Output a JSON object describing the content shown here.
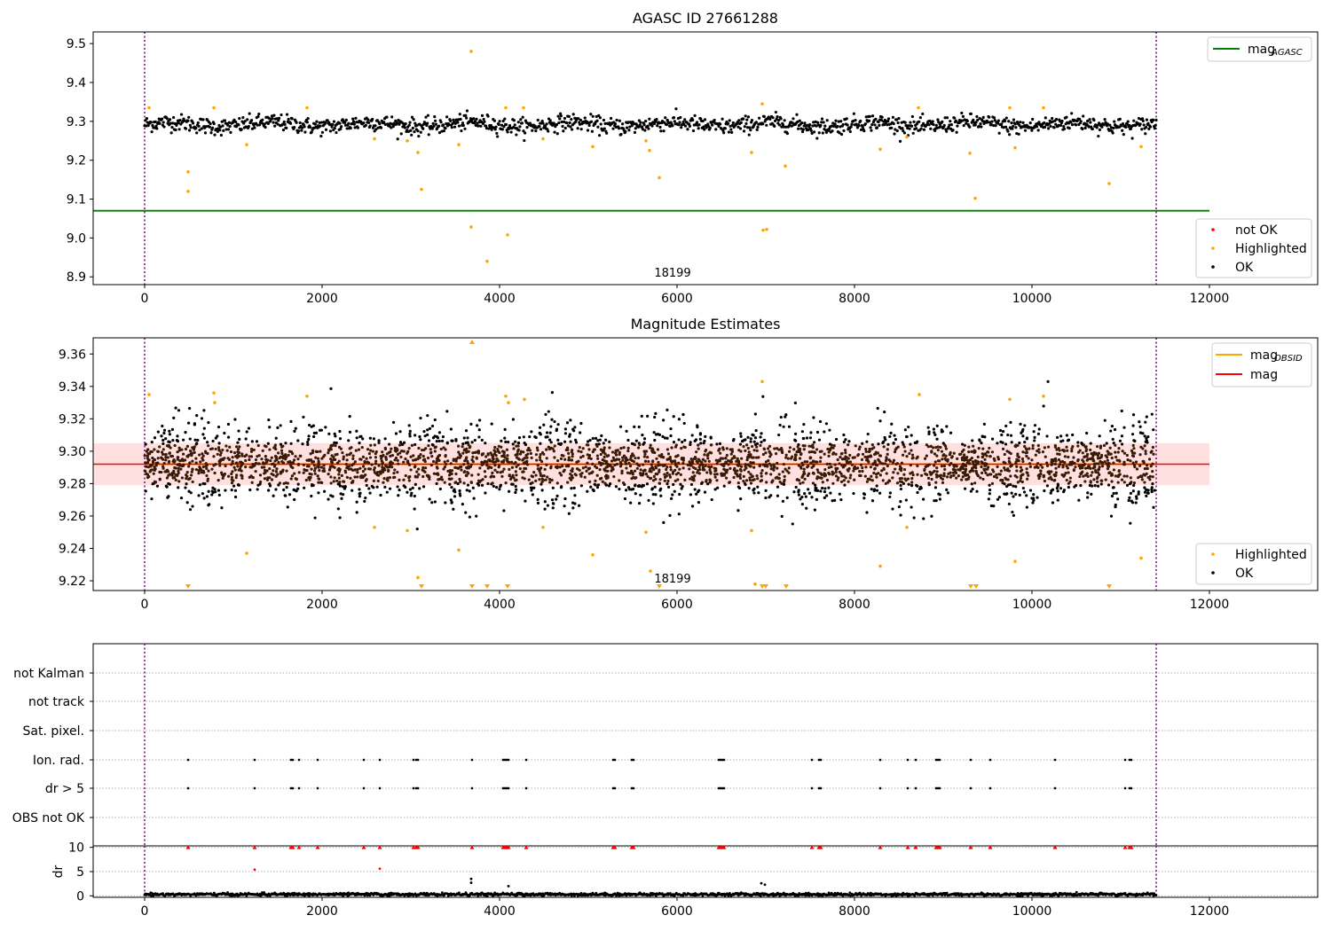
{
  "chart_data": [
    {
      "type": "scatter",
      "title": "AGASC ID 27661288",
      "xlim": [
        -580,
        13220
      ],
      "ylim": [
        8.88,
        9.53
      ],
      "xticks": [
        0,
        2000,
        4000,
        6000,
        8000,
        10000,
        12000
      ],
      "yticks": [
        8.9,
        9.0,
        9.1,
        9.2,
        9.3,
        9.4,
        9.5
      ],
      "annotation": "18199",
      "vlines": [
        0,
        11400
      ],
      "colors": {
        "ok": "#000000",
        "highlighted": "#ffa500",
        "not_ok": "#ff0000",
        "mag_agasc": "#008000",
        "vline": "#800080"
      },
      "mag_agasc": {
        "value": 9.07,
        "x": [
          -580,
          12000
        ]
      },
      "ok_series": {
        "name": "OK",
        "x_range": [
          0,
          11400
        ],
        "center": 9.292,
        "spread": 0.015,
        "count": 1400
      },
      "highlighted_points": [
        [
          50,
          9.335
        ],
        [
          490,
          9.17
        ],
        [
          490,
          9.12
        ],
        [
          780,
          9.335
        ],
        [
          1150,
          9.24
        ],
        [
          1830,
          9.335
        ],
        [
          2590,
          9.255
        ],
        [
          2960,
          9.25
        ],
        [
          3080,
          9.22
        ],
        [
          3120,
          9.125
        ],
        [
          3540,
          9.24
        ],
        [
          3680,
          9.48
        ],
        [
          3680,
          9.028
        ],
        [
          3860,
          8.94
        ],
        [
          4070,
          9.335
        ],
        [
          4090,
          9.008
        ],
        [
          4270,
          9.335
        ],
        [
          4490,
          9.255
        ],
        [
          5050,
          9.235
        ],
        [
          5650,
          9.25
        ],
        [
          5690,
          9.225
        ],
        [
          5800,
          9.155
        ],
        [
          6840,
          9.22
        ],
        [
          6960,
          9.345
        ],
        [
          6970,
          9.02
        ],
        [
          7010,
          9.022
        ],
        [
          7220,
          9.185
        ],
        [
          8290,
          9.228
        ],
        [
          8590,
          9.26
        ],
        [
          8720,
          9.335
        ],
        [
          9300,
          9.218
        ],
        [
          9360,
          9.102
        ],
        [
          9750,
          9.335
        ],
        [
          9810,
          9.232
        ],
        [
          10130,
          9.335
        ],
        [
          10870,
          9.14
        ],
        [
          11230,
          9.235
        ]
      ],
      "legend_top": [
        {
          "label": "mag",
          "sub": "AGASC",
          "kind": "line",
          "color": "#008000"
        }
      ],
      "legend_bottom": [
        {
          "label": "not OK",
          "color": "#ff0000"
        },
        {
          "label": "Highlighted",
          "color": "#ffa500"
        },
        {
          "label": "OK",
          "color": "#000000"
        }
      ]
    },
    {
      "type": "scatter",
      "title": "Magnitude Estimates",
      "xlim": [
        -580,
        13220
      ],
      "ylim": [
        9.214,
        9.37
      ],
      "xticks": [
        0,
        2000,
        4000,
        6000,
        8000,
        10000,
        12000
      ],
      "yticks": [
        9.22,
        9.24,
        9.26,
        9.28,
        9.3,
        9.32,
        9.34,
        9.36
      ],
      "yticklabels": [
        "9.22",
        "9.24",
        "9.26",
        "9.28",
        "9.30",
        "9.32",
        "9.34",
        "9.36"
      ],
      "annotation": "18199",
      "vlines": [
        0,
        11400
      ],
      "mag": {
        "value": 9.292,
        "x": [
          -580,
          12000
        ],
        "band": [
          9.279,
          9.305
        ],
        "color": "#ff0000"
      },
      "mag_obsid": {
        "value": 9.292,
        "x": [
          0,
          11400
        ],
        "color": "#ffa500"
      },
      "ok_series": {
        "name": "OK",
        "x_range": [
          0,
          11400
        ],
        "center": 9.292,
        "spread": 0.012,
        "count": 3500
      },
      "highlighted_points": [
        [
          50,
          9.335
        ],
        [
          780,
          9.336
        ],
        [
          790,
          9.33
        ],
        [
          1150,
          9.237
        ],
        [
          1830,
          9.334
        ],
        [
          2590,
          9.253
        ],
        [
          2960,
          9.251
        ],
        [
          3080,
          9.222
        ],
        [
          3540,
          9.239
        ],
        [
          4070,
          9.334
        ],
        [
          4100,
          9.33
        ],
        [
          4280,
          9.332
        ],
        [
          4490,
          9.253
        ],
        [
          5050,
          9.236
        ],
        [
          5650,
          9.25
        ],
        [
          5700,
          9.226
        ],
        [
          6840,
          9.251
        ],
        [
          6880,
          9.218
        ],
        [
          6960,
          9.343
        ],
        [
          8290,
          9.229
        ],
        [
          8590,
          9.253
        ],
        [
          8730,
          9.335
        ],
        [
          9750,
          9.332
        ],
        [
          9810,
          9.232
        ],
        [
          10130,
          9.334
        ],
        [
          11230,
          9.234
        ]
      ],
      "upper_markers": [
        3690
      ],
      "lower_markers": [
        490,
        3120,
        3690,
        3860,
        4090,
        5800,
        6960,
        7000,
        7230,
        9310,
        9370,
        10870
      ],
      "legend_top": [
        {
          "label": "mag",
          "sub": "OBSID",
          "kind": "line",
          "color": "#ffa500"
        },
        {
          "label": "mag",
          "sub": "",
          "kind": "line",
          "color": "#ff0000"
        }
      ],
      "legend_bottom": [
        {
          "label": "Highlighted",
          "color": "#ffa500"
        },
        {
          "label": "OK",
          "color": "#000000"
        }
      ]
    },
    {
      "type": "scatter",
      "xlim": [
        -580,
        13220
      ],
      "xticks": [
        0,
        2000,
        4000,
        6000,
        8000,
        10000,
        12000
      ],
      "vlines": [
        0,
        11400
      ],
      "flag_rows": [
        "not Kalman",
        "not track",
        "Sat. pixel.",
        "Ion. rad.",
        "dr > 5",
        "OBS not OK"
      ],
      "flag_x": [
        490,
        1240,
        1650,
        1670,
        1740,
        1950,
        2470,
        2650,
        3030,
        3060,
        3080,
        3690,
        4040,
        4060,
        4080,
        4100,
        4300,
        5280,
        5300,
        5490,
        5510,
        6470,
        6490,
        6510,
        6530,
        7520,
        7600,
        7620,
        8290,
        8600,
        8690,
        8920,
        8940,
        8960,
        9310,
        9530,
        10260,
        11050,
        11100,
        11120
      ],
      "dr_ylabel": "dr",
      "dr_ylim": [
        -0.3,
        10.3
      ],
      "dr_yticks": [
        0,
        5,
        10
      ],
      "dr_baseline": {
        "x_range": [
          0,
          11400
        ],
        "center": 0.3,
        "spread": 0.15,
        "count": 1500
      },
      "dr_high_x": [
        490,
        1240,
        1650,
        1670,
        1740,
        1950,
        2470,
        2650,
        3030,
        3060,
        3080,
        3690,
        4040,
        4060,
        4080,
        4100,
        4300,
        5280,
        5300,
        5490,
        5510,
        6470,
        6490,
        6510,
        6530,
        7520,
        7600,
        7620,
        8290,
        8600,
        8690,
        8920,
        8940,
        8960,
        9310,
        9530,
        10260,
        11050,
        11100,
        11120
      ],
      "dr_mid_points": [
        [
          1240,
          5.4
        ],
        [
          2650,
          5.6
        ],
        [
          3680,
          3.5
        ],
        [
          3680,
          2.7
        ],
        [
          4100,
          2.0
        ],
        [
          6950,
          2.6
        ],
        [
          6990,
          2.3
        ]
      ]
    }
  ]
}
